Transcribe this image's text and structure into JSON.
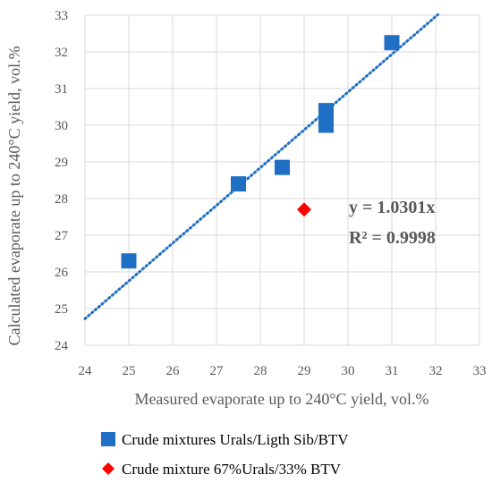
{
  "chart_data": {
    "type": "scatter",
    "xlabel": "Measured evaporate up to 240°C yield, vol.%",
    "ylabel": "Calculated evaporate up to 240°C yield, vol.%",
    "xlim": [
      24,
      33
    ],
    "ylim": [
      24,
      33
    ],
    "x_ticks": [
      "24",
      "25",
      "26",
      "27",
      "28",
      "29",
      "30",
      "31",
      "32",
      "33"
    ],
    "y_ticks": [
      "24",
      "25",
      "26",
      "27",
      "28",
      "29",
      "30",
      "31",
      "32",
      "33"
    ],
    "grid": "both",
    "series": [
      {
        "name": "Crude mixtures Urals/Ligth Sib/BTV",
        "marker": "square",
        "color": "#1f6fc5",
        "points": [
          {
            "x": 25.0,
            "y": 26.3
          },
          {
            "x": 27.5,
            "y": 28.4
          },
          {
            "x": 28.5,
            "y": 28.85
          },
          {
            "x": 29.5,
            "y": 30.0
          },
          {
            "x": 29.5,
            "y": 30.4
          },
          {
            "x": 31.0,
            "y": 32.25
          }
        ]
      },
      {
        "name": "Crude mixture 67%Urals/33% BTV",
        "marker": "diamond",
        "color": "#ff0000",
        "points": [
          {
            "x": 29.0,
            "y": 27.7
          }
        ]
      }
    ],
    "trendline": {
      "slope": 1.0301,
      "x_range": [
        24,
        32.05
      ],
      "color": "#1f6fc5",
      "style": "dotted",
      "equation": "y = 1.0301x",
      "r_squared": "R² = 0.9998"
    },
    "legend_position": "bottom"
  }
}
